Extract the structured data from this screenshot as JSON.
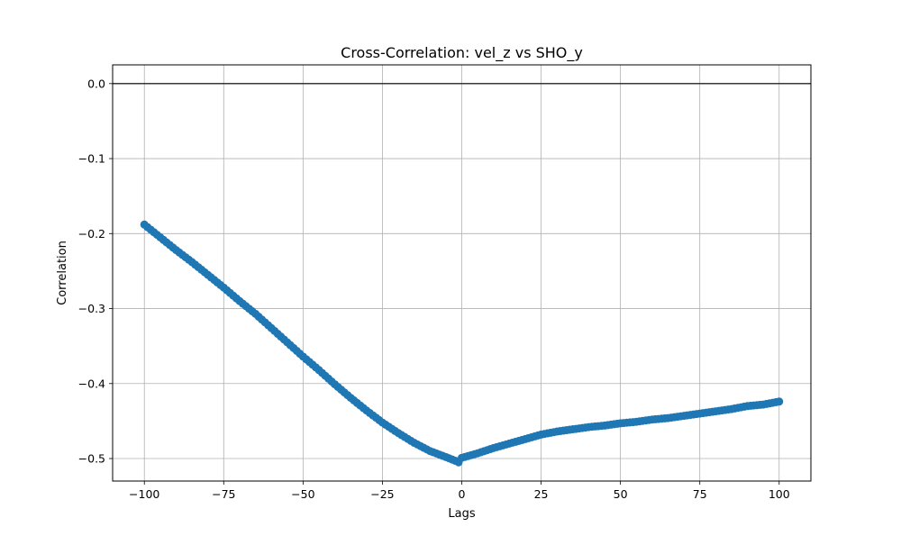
{
  "chart_data": {
    "type": "scatter",
    "title": "Cross-Correlation: vel_z vs SHO_y",
    "xlabel": "Lags",
    "ylabel": "Correlation",
    "xlim": [
      -110,
      110
    ],
    "ylim": [
      -0.53,
      0.025
    ],
    "x_ticks": [
      -100,
      -75,
      -50,
      -25,
      0,
      25,
      50,
      75,
      100
    ],
    "x_tick_labels": [
      "−100",
      "−75",
      "−50",
      "−25",
      "0",
      "25",
      "50",
      "75",
      "100"
    ],
    "y_ticks": [
      0.0,
      -0.1,
      -0.2,
      -0.3,
      -0.4,
      -0.5
    ],
    "y_tick_labels": [
      "0.0",
      "−0.1",
      "−0.2",
      "−0.3",
      "−0.4",
      "−0.5"
    ],
    "grid": true,
    "horizontal_reference_line": 0.0,
    "marker": "circle",
    "series_color": "#1f77b4",
    "reference_line_color": "#000000",
    "keypoints": [
      [
        -100,
        -0.188
      ],
      [
        -95,
        -0.205
      ],
      [
        -90,
        -0.222
      ],
      [
        -85,
        -0.238
      ],
      [
        -80,
        -0.255
      ],
      [
        -75,
        -0.272
      ],
      [
        -70,
        -0.29
      ],
      [
        -65,
        -0.307
      ],
      [
        -60,
        -0.326
      ],
      [
        -55,
        -0.345
      ],
      [
        -50,
        -0.364
      ],
      [
        -45,
        -0.382
      ],
      [
        -40,
        -0.401
      ],
      [
        -35,
        -0.419
      ],
      [
        -30,
        -0.436
      ],
      [
        -25,
        -0.452
      ],
      [
        -20,
        -0.466
      ],
      [
        -15,
        -0.479
      ],
      [
        -10,
        -0.49
      ],
      [
        -5,
        -0.498
      ],
      [
        -2,
        -0.503
      ],
      [
        -1,
        -0.505
      ],
      [
        0,
        -0.499
      ],
      [
        5,
        -0.493
      ],
      [
        10,
        -0.486
      ],
      [
        15,
        -0.48
      ],
      [
        20,
        -0.474
      ],
      [
        25,
        -0.468
      ],
      [
        30,
        -0.464
      ],
      [
        35,
        -0.461
      ],
      [
        40,
        -0.458
      ],
      [
        45,
        -0.456
      ],
      [
        50,
        -0.453
      ],
      [
        55,
        -0.451
      ],
      [
        60,
        -0.448
      ],
      [
        65,
        -0.446
      ],
      [
        70,
        -0.443
      ],
      [
        75,
        -0.44
      ],
      [
        80,
        -0.437
      ],
      [
        85,
        -0.434
      ],
      [
        90,
        -0.43
      ],
      [
        95,
        -0.428
      ],
      [
        100,
        -0.424
      ]
    ]
  }
}
